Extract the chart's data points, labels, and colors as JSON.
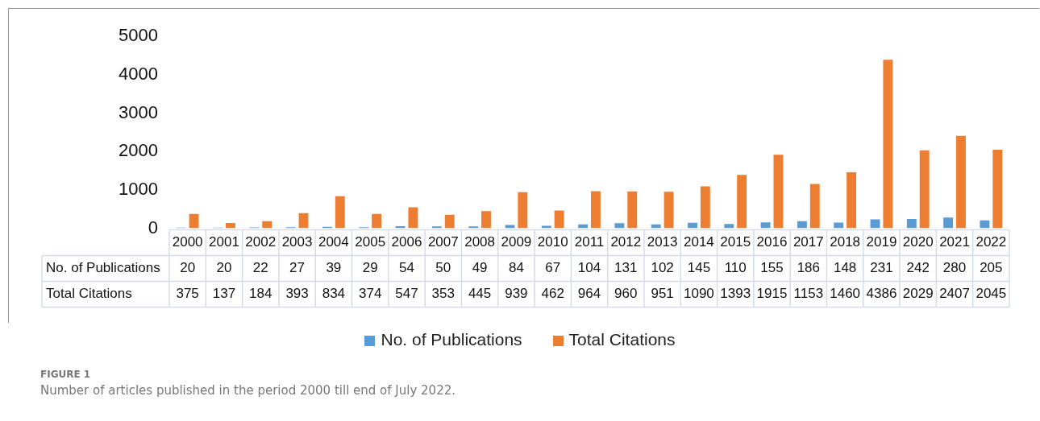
{
  "chart_data": {
    "type": "bar",
    "categories": [
      "2000",
      "2001",
      "2002",
      "2003",
      "2004",
      "2005",
      "2006",
      "2007",
      "2008",
      "2009",
      "2010",
      "2011",
      "2012",
      "2013",
      "2014",
      "2015",
      "2016",
      "2017",
      "2018",
      "2019",
      "2020",
      "2021",
      "2022"
    ],
    "series": [
      {
        "name": "No. of Publications",
        "color": "#5b9bd5",
        "values": [
          20,
          20,
          22,
          27,
          39,
          29,
          54,
          50,
          49,
          84,
          67,
          104,
          131,
          102,
          145,
          110,
          155,
          186,
          148,
          231,
          242,
          280,
          205
        ]
      },
      {
        "name": "Total Citations",
        "color": "#ed7d31",
        "values": [
          375,
          137,
          184,
          393,
          834,
          374,
          547,
          353,
          445,
          939,
          462,
          964,
          960,
          951,
          1090,
          1393,
          1915,
          1153,
          1460,
          4386,
          2029,
          2407,
          2045
        ]
      }
    ],
    "ylim": [
      0,
      5000
    ],
    "yticks": [
      0,
      1000,
      2000,
      3000,
      4000,
      5000
    ],
    "grid": false,
    "legend": "bottom",
    "data_labels": true,
    "annotations": [
      "FIGURE 1",
      "Number of articles published in the period 2000 till end of July 2022."
    ]
  }
}
